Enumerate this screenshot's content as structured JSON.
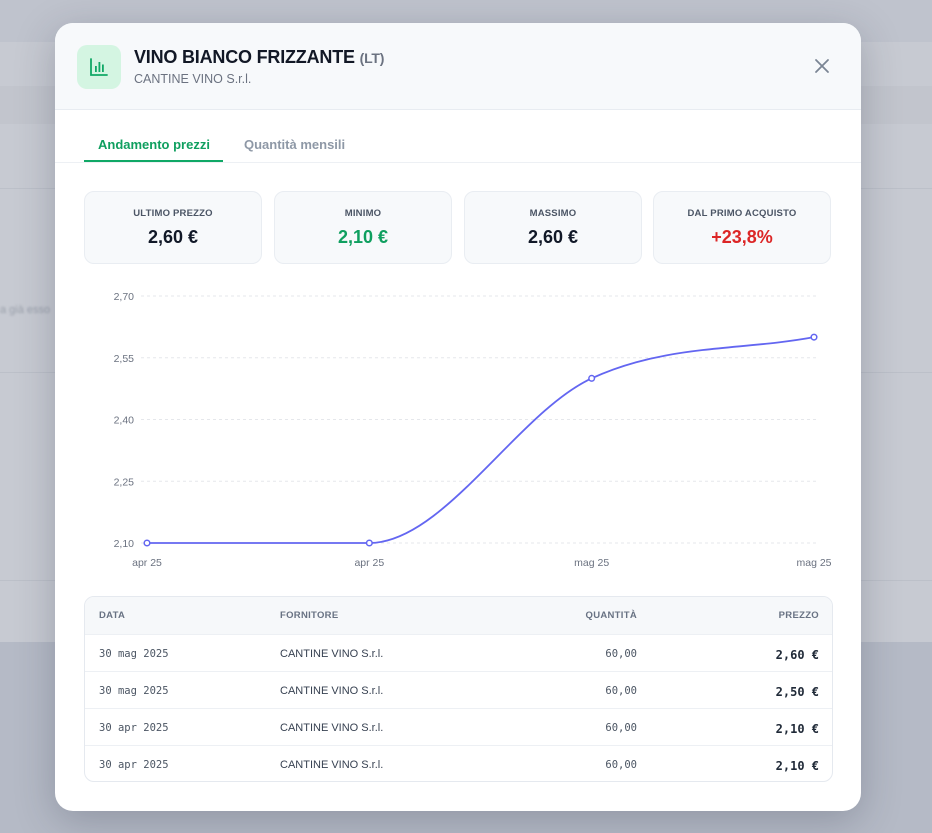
{
  "background": {
    "snippet": "a già esso"
  },
  "header": {
    "title": "VINO BIANCO FRIZZANTE",
    "unit": "(LT)",
    "subtitle": "CANTINE VINO S.r.l.",
    "icon": "bar-chart-icon",
    "close_icon": "close-icon"
  },
  "tabs": [
    {
      "label": "Andamento prezzi",
      "active": true
    },
    {
      "label": "Quantità mensili",
      "active": false
    }
  ],
  "stats": [
    {
      "label": "ULTIMO PREZZO",
      "value": "2,60 €",
      "color": "#111827"
    },
    {
      "label": "MINIMO",
      "value": "2,10 €",
      "color": "#0f9f5f"
    },
    {
      "label": "MASSIMO",
      "value": "2,60 €",
      "color": "#111827"
    },
    {
      "label": "DAL PRIMO ACQUISTO",
      "value": "+23,8%",
      "color": "#dc2626"
    }
  ],
  "chart_data": {
    "type": "line",
    "x": [
      "apr 25",
      "apr 25",
      "mag 25",
      "mag 25"
    ],
    "series": [
      {
        "values": [
          2.1,
          2.1,
          2.5,
          2.6
        ],
        "color": "#6366f1"
      }
    ],
    "yticks": [
      "2,70",
      "2,55",
      "2,40",
      "2,25",
      "2,10"
    ],
    "ylim": [
      2.1,
      2.7
    ],
    "grid": true
  },
  "table": {
    "headers": [
      "DATA",
      "FORNITORE",
      "QUANTITÀ",
      "PREZZO"
    ],
    "rows": [
      [
        "30 mag 2025",
        "CANTINE VINO S.r.l.",
        "60,00",
        "2,60 €"
      ],
      [
        "30 mag 2025",
        "CANTINE VINO S.r.l.",
        "60,00",
        "2,50 €"
      ],
      [
        "30 apr 2025",
        "CANTINE VINO S.r.l.",
        "60,00",
        "2,10 €"
      ],
      [
        "30 apr 2025",
        "CANTINE VINO S.r.l.",
        "60,00",
        "2,10 €"
      ]
    ]
  }
}
